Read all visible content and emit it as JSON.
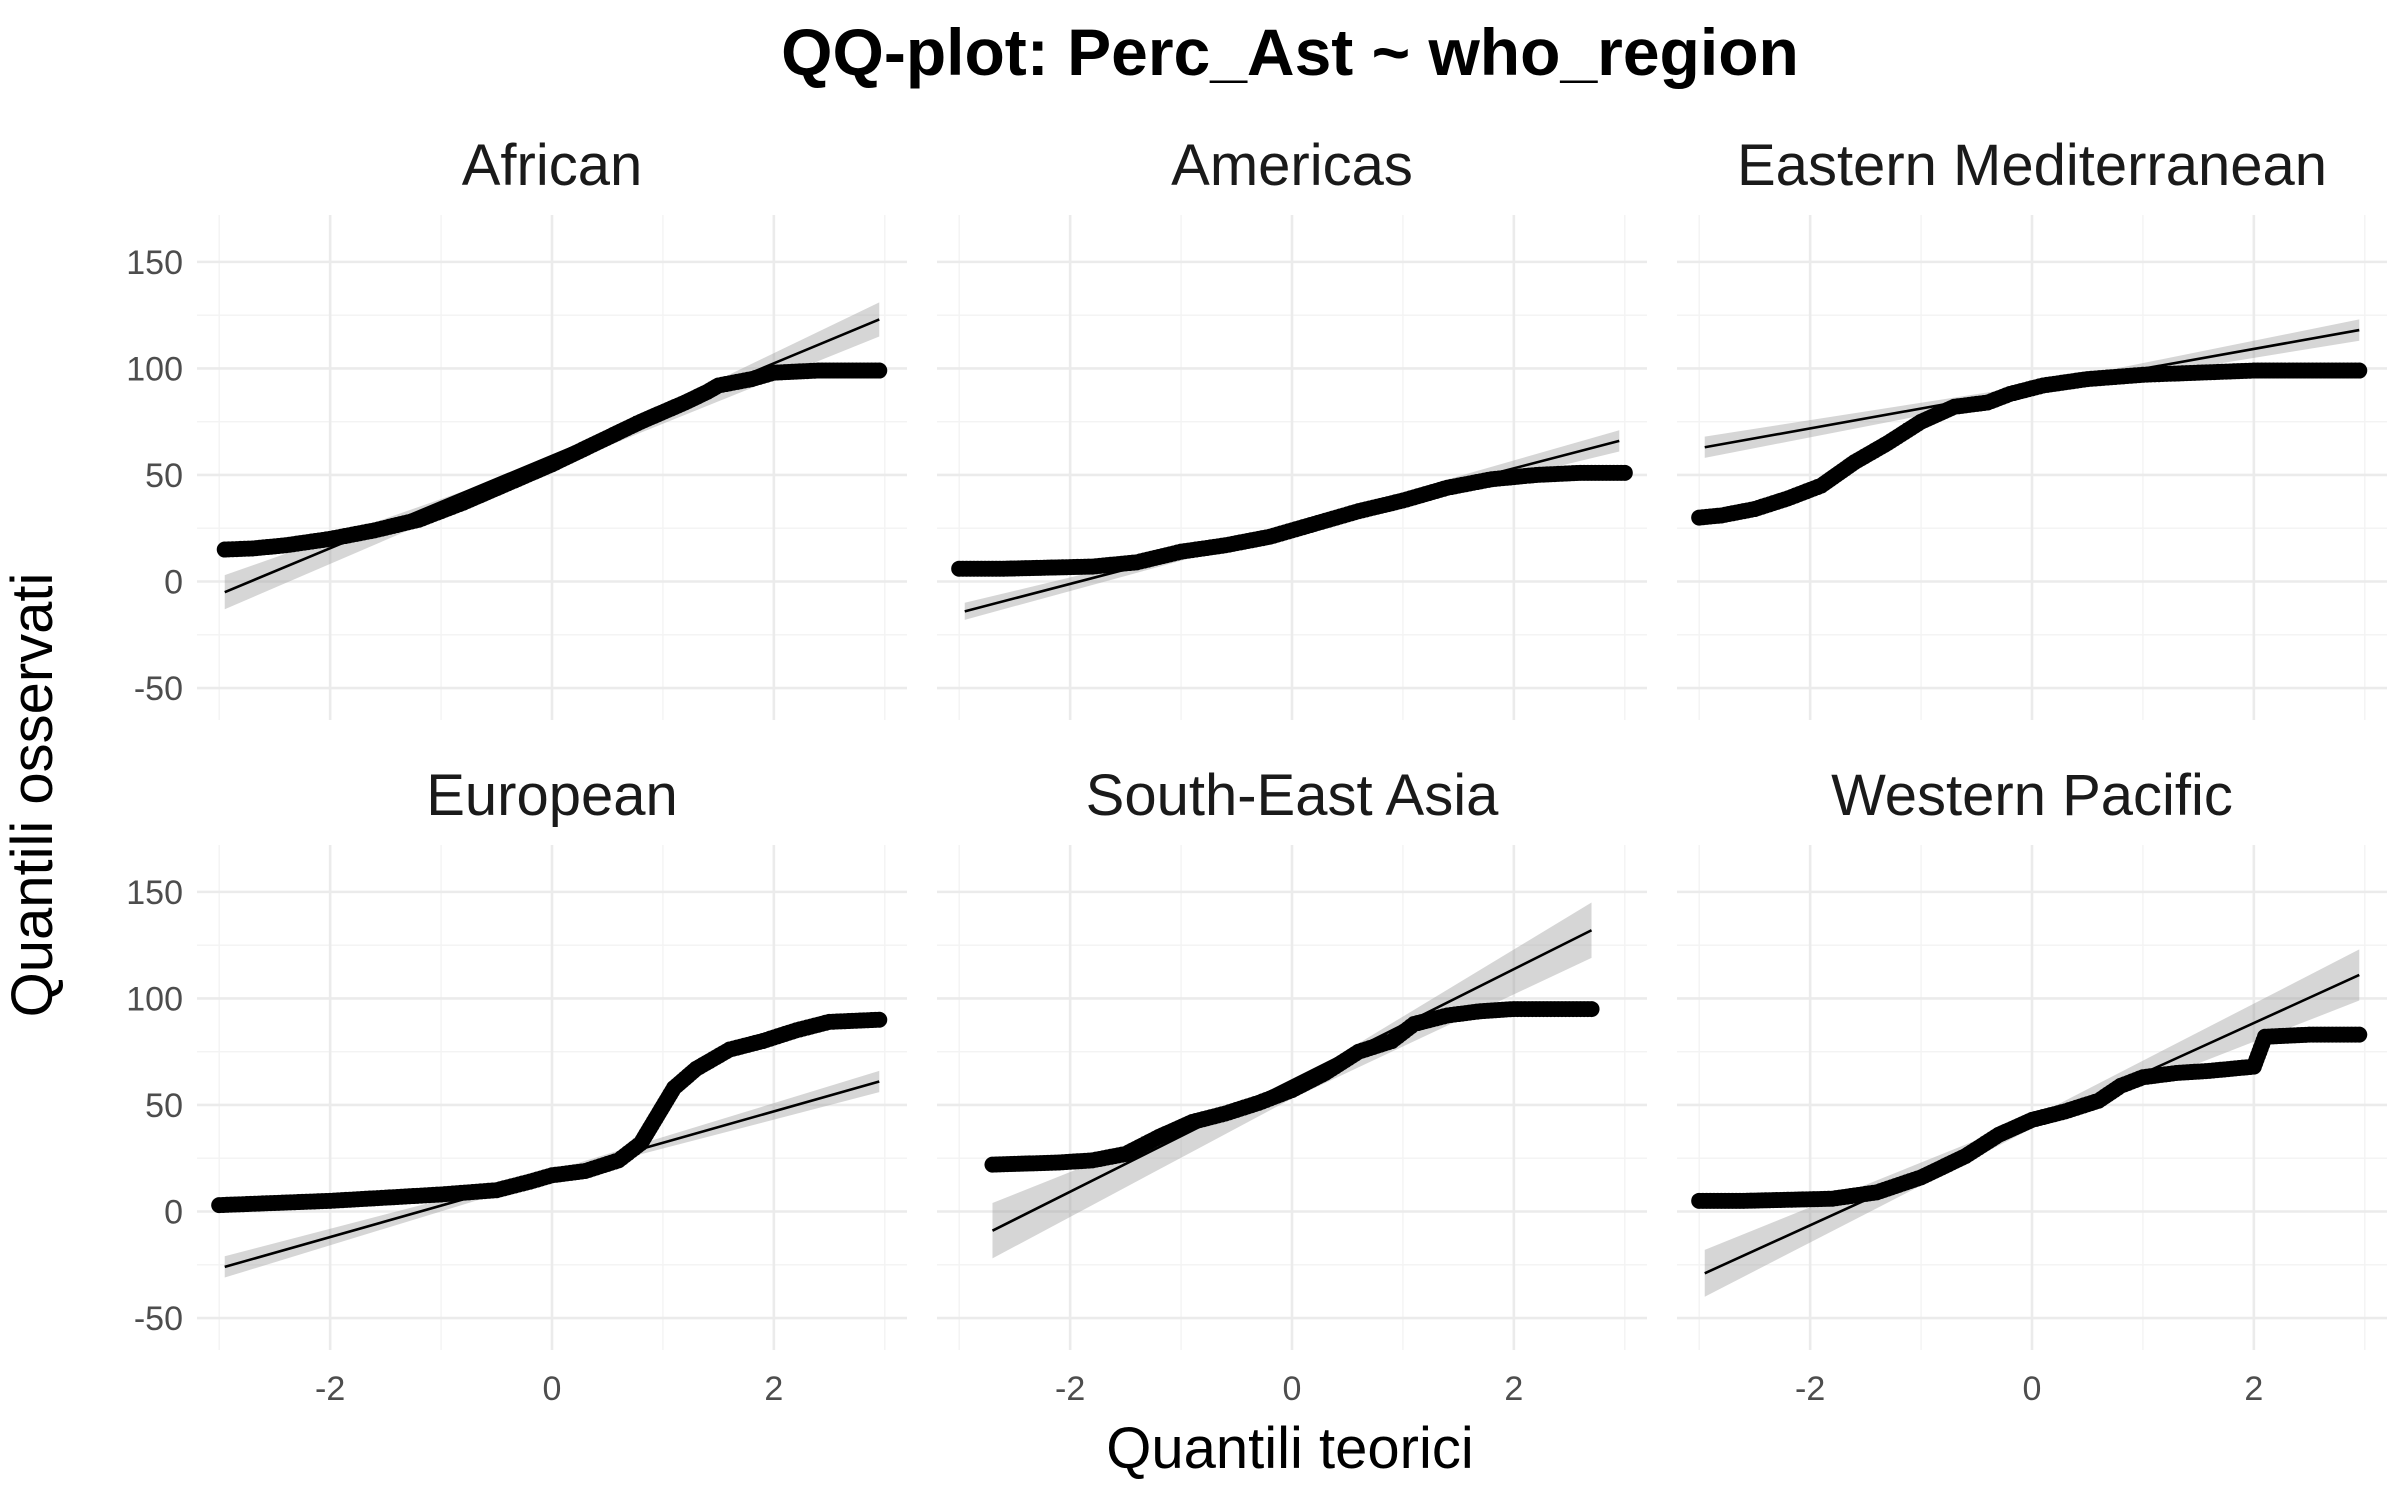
{
  "chart_data": {
    "type": "scatter",
    "title": "QQ-plot: Perc_Ast ~ who_region",
    "xlabel": "Quantili teorici",
    "ylabel": "Quantili osservati",
    "xlim": [
      -3.2,
      3.2
    ],
    "ylim": [
      -65,
      172
    ],
    "x_ticks": [
      -2,
      0,
      2
    ],
    "y_ticks": [
      -50,
      0,
      50,
      100,
      150
    ],
    "grid": true,
    "panels": [
      {
        "name": "African",
        "points": [
          [
            -2.95,
            15
          ],
          [
            -2.7,
            15.5
          ],
          [
            -2.4,
            17
          ],
          [
            -2.0,
            20
          ],
          [
            -1.6,
            24
          ],
          [
            -1.2,
            29
          ],
          [
            -0.8,
            37
          ],
          [
            -0.4,
            46
          ],
          [
            0,
            55
          ],
          [
            0.4,
            65
          ],
          [
            0.8,
            75
          ],
          [
            1.2,
            84
          ],
          [
            1.4,
            89
          ],
          [
            1.5,
            92
          ],
          [
            1.8,
            95
          ],
          [
            2.0,
            98
          ],
          [
            2.4,
            99
          ],
          [
            2.95,
            99
          ]
        ],
        "line": [
          [
            -2.95,
            -5
          ],
          [
            2.95,
            123
          ]
        ],
        "band": [
          [
            -2.95,
            -13,
            3
          ],
          [
            0,
            53,
            57
          ],
          [
            2.95,
            115,
            131
          ]
        ]
      },
      {
        "name": "Americas",
        "points": [
          [
            -3.0,
            6
          ],
          [
            -2.6,
            6
          ],
          [
            -2.2,
            6.5
          ],
          [
            -1.8,
            7
          ],
          [
            -1.4,
            9
          ],
          [
            -1.0,
            14
          ],
          [
            -0.6,
            17
          ],
          [
            -0.2,
            21
          ],
          [
            0.2,
            27
          ],
          [
            0.6,
            33
          ],
          [
            1.0,
            38
          ],
          [
            1.4,
            44
          ],
          [
            1.8,
            48
          ],
          [
            2.2,
            50
          ],
          [
            2.6,
            51
          ],
          [
            3.0,
            51
          ]
        ],
        "line": [
          [
            -2.95,
            -14
          ],
          [
            2.95,
            66
          ]
        ],
        "band": [
          [
            -2.95,
            -18,
            -10
          ],
          [
            0,
            24,
            27
          ],
          [
            2.95,
            61,
            71
          ]
        ]
      },
      {
        "name": "Eastern Mediterranean",
        "points": [
          [
            -3.0,
            30
          ],
          [
            -2.8,
            31
          ],
          [
            -2.5,
            34
          ],
          [
            -2.2,
            39
          ],
          [
            -1.9,
            45
          ],
          [
            -1.6,
            56
          ],
          [
            -1.3,
            65
          ],
          [
            -1.0,
            75
          ],
          [
            -0.7,
            82
          ],
          [
            -0.4,
            84
          ],
          [
            -0.2,
            88
          ],
          [
            0.1,
            92
          ],
          [
            0.5,
            95
          ],
          [
            1.0,
            97
          ],
          [
            1.5,
            98
          ],
          [
            2.0,
            99
          ],
          [
            2.6,
            99
          ],
          [
            2.95,
            99
          ]
        ],
        "line": [
          [
            -2.95,
            63
          ],
          [
            2.95,
            118
          ]
        ],
        "band": [
          [
            -2.95,
            58,
            68
          ],
          [
            0,
            88,
            92
          ],
          [
            2.95,
            113,
            123
          ]
        ]
      },
      {
        "name": "European",
        "points": [
          [
            -3.0,
            3
          ],
          [
            -2.5,
            4
          ],
          [
            -2.0,
            5
          ],
          [
            -1.5,
            6.5
          ],
          [
            -1.0,
            8
          ],
          [
            -0.5,
            10
          ],
          [
            -0.2,
            14
          ],
          [
            0,
            17
          ],
          [
            0.3,
            19
          ],
          [
            0.6,
            24
          ],
          [
            0.8,
            32
          ],
          [
            0.95,
            45
          ],
          [
            1.1,
            58
          ],
          [
            1.3,
            67
          ],
          [
            1.6,
            76
          ],
          [
            1.9,
            80
          ],
          [
            2.2,
            85
          ],
          [
            2.5,
            89
          ],
          [
            2.95,
            90
          ]
        ],
        "line": [
          [
            -2.95,
            -26
          ],
          [
            2.95,
            61
          ]
        ],
        "band": [
          [
            -2.95,
            -31,
            -21
          ],
          [
            0,
            16,
            19
          ],
          [
            2.95,
            56,
            66
          ]
        ]
      },
      {
        "name": "South-East Asia",
        "points": [
          [
            -2.7,
            22
          ],
          [
            -2.4,
            22.5
          ],
          [
            -2.1,
            23
          ],
          [
            -1.8,
            24
          ],
          [
            -1.5,
            27
          ],
          [
            -1.2,
            35
          ],
          [
            -0.9,
            42
          ],
          [
            -0.6,
            46
          ],
          [
            -0.3,
            51
          ],
          [
            0,
            57
          ],
          [
            0.3,
            65
          ],
          [
            0.6,
            75
          ],
          [
            0.9,
            80
          ],
          [
            1.1,
            88
          ],
          [
            1.4,
            92
          ],
          [
            1.7,
            94
          ],
          [
            2.0,
            95
          ],
          [
            2.4,
            95
          ],
          [
            2.7,
            95
          ]
        ],
        "line": [
          [
            -2.7,
            -9
          ],
          [
            2.7,
            132
          ]
        ],
        "band": [
          [
            -2.7,
            -22,
            4
          ],
          [
            0,
            53,
            60
          ],
          [
            2.7,
            119,
            145
          ]
        ]
      },
      {
        "name": "Western Pacific",
        "points": [
          [
            -3.0,
            5
          ],
          [
            -2.6,
            5
          ],
          [
            -2.2,
            5.5
          ],
          [
            -1.8,
            6
          ],
          [
            -1.4,
            9
          ],
          [
            -1.0,
            16
          ],
          [
            -0.6,
            26
          ],
          [
            -0.3,
            36
          ],
          [
            0,
            43
          ],
          [
            0.3,
            47
          ],
          [
            0.6,
            52
          ],
          [
            0.8,
            59
          ],
          [
            1.0,
            63
          ],
          [
            1.3,
            65
          ],
          [
            1.6,
            66
          ],
          [
            2.0,
            68
          ],
          [
            2.1,
            82
          ],
          [
            2.5,
            83
          ],
          [
            2.95,
            83
          ]
        ],
        "line": [
          [
            -2.95,
            -29
          ],
          [
            2.95,
            111
          ]
        ],
        "band": [
          [
            -2.95,
            -40,
            -18
          ],
          [
            0,
            39,
            44
          ],
          [
            2.95,
            99,
            123
          ]
        ]
      }
    ]
  }
}
